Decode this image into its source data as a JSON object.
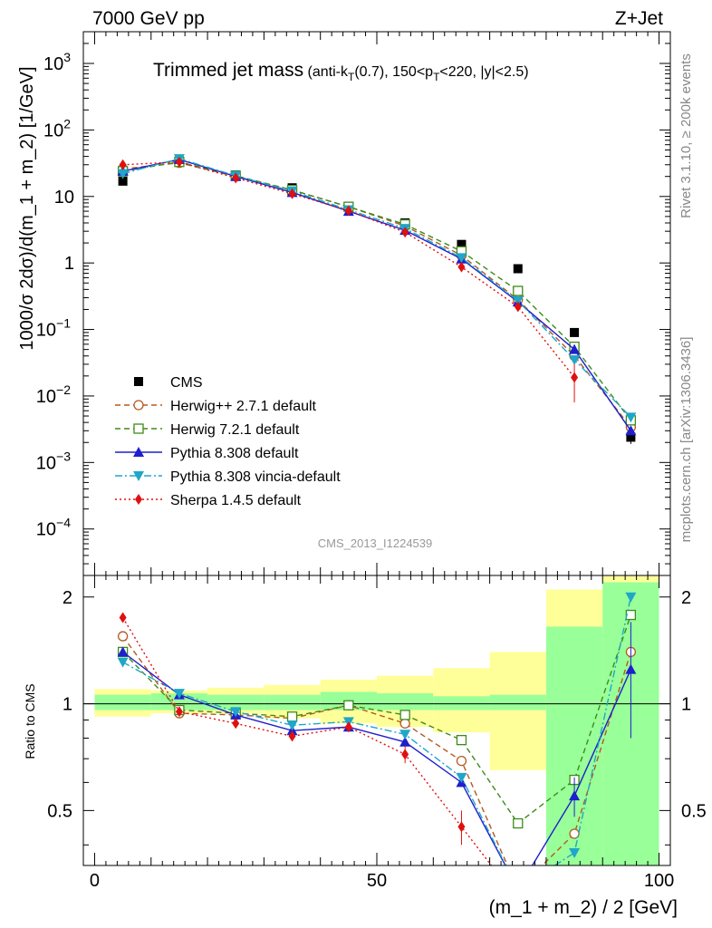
{
  "header": {
    "energy_label": "7000 GeV pp",
    "process_label": "Z+Jet"
  },
  "side_labels": {
    "rivet": "Rivet 3.1.10, ≥ 200k events",
    "mcplots": "mcplots.cern.ch [arXiv:1306.3436]"
  },
  "analysis_id": "CMS_2013_I1224539",
  "chart_data": [
    {
      "type": "line",
      "panel": "main",
      "title": "Trimmed jet mass",
      "subtitle": "(anti-k_T(0.7), 150<p_T<220, |y|<2.5)",
      "ylabel": "1000/σ 2dσ)/d(m_1 + m_2) [1/GeV]",
      "xlabel": "(m_1 + m_2) / 2 [GeV]",
      "xlim": [
        -2,
        102
      ],
      "ylim": [
        2e-05,
        3000
      ],
      "yscale": "log",
      "grid": false,
      "legend_position": "bottom-left",
      "x": [
        5,
        15,
        25,
        35,
        45,
        55,
        65,
        75,
        85,
        95
      ],
      "yticks": [
        {
          "value": 0.0001,
          "base": "10",
          "exp": "−4"
        },
        {
          "value": 0.001,
          "base": "10",
          "exp": "−3"
        },
        {
          "value": 0.01,
          "base": "10",
          "exp": "−2"
        },
        {
          "value": 0.1,
          "base": "10",
          "exp": "−1"
        },
        {
          "value": 1,
          "base": "1",
          "exp": ""
        },
        {
          "value": 10,
          "base": "10",
          "exp": ""
        },
        {
          "value": 100,
          "base": "10",
          "exp": "2"
        },
        {
          "value": 1000,
          "base": "10",
          "exp": "3"
        }
      ],
      "series": [
        {
          "name": "CMS",
          "color": "#000000",
          "marker": "square-filled",
          "line": "none",
          "values": [
            17,
            34,
            21,
            13.5,
            7,
            4,
            1.9,
            0.82,
            0.09,
            0.0024
          ],
          "errors": [
            1,
            2,
            1,
            0.7,
            0.4,
            0.25,
            0.12,
            0.06,
            0.01,
            0.0005
          ]
        },
        {
          "name": "Herwig++ 2.7.1 default",
          "color": "#b35a1f",
          "marker": "circle-open",
          "line": "dashed",
          "values": [
            26,
            32,
            20,
            12.5,
            7,
            3.6,
            1.3,
            0.28,
            0.04,
            0.0034
          ]
        },
        {
          "name": "Herwig 7.2.1 default",
          "color": "#3d8b1a",
          "marker": "square-open",
          "line": "dashed",
          "values": [
            24,
            33,
            20.5,
            12.5,
            7,
            3.8,
            1.5,
            0.38,
            0.055,
            0.0043
          ]
        },
        {
          "name": "Pythia 8.308 default",
          "color": "#1f1fcc",
          "marker": "triangle-up-filled",
          "line": "solid",
          "values": [
            24,
            36,
            20,
            11.5,
            6,
            3.1,
            1.15,
            0.26,
            0.05,
            0.003
          ]
        },
        {
          "name": "Pythia 8.308 vincia-default",
          "color": "#1fa6c9",
          "marker": "triangle-down-filled",
          "line": "dashdot",
          "values": [
            22,
            37,
            20.5,
            12,
            6.3,
            3.3,
            1.2,
            0.27,
            0.035,
            0.0048
          ]
        },
        {
          "name": "Sherpa 1.4.5 default",
          "color": "#e01010",
          "marker": "diamond-filled",
          "line": "dotted",
          "values": [
            30,
            33,
            19,
            11,
            6.1,
            2.9,
            0.87,
            0.22,
            0.019,
            null
          ],
          "errors": [
            null,
            null,
            null,
            null,
            null,
            null,
            null,
            null,
            0.011,
            null
          ]
        }
      ]
    },
    {
      "type": "line",
      "panel": "ratio",
      "ylabel": "Ratio to CMS",
      "xlabel": "(m_1 + m_2) / 2 [GeV]",
      "xlim": [
        -2,
        102
      ],
      "ylim": [
        0.35,
        2.3
      ],
      "yticks": [
        0.5,
        1,
        2
      ],
      "xticks": [
        0,
        50,
        100
      ],
      "reference_line": 1,
      "x": [
        5,
        15,
        25,
        35,
        45,
        55,
        65,
        75,
        85,
        95
      ],
      "band_colors": {
        "stat": "#99ff99",
        "total": "#ffff99"
      },
      "uncertainty_bands": [
        {
          "x0": 0,
          "x1": 10,
          "inner": [
            0.96,
            1.06
          ],
          "outer": [
            0.92,
            1.1
          ]
        },
        {
          "x0": 10,
          "x1": 20,
          "inner": [
            0.96,
            1.07
          ],
          "outer": [
            0.94,
            1.09
          ]
        },
        {
          "x0": 20,
          "x1": 30,
          "inner": [
            0.96,
            1.06
          ],
          "outer": [
            0.94,
            1.11
          ]
        },
        {
          "x0": 30,
          "x1": 40,
          "inner": [
            0.96,
            1.06
          ],
          "outer": [
            0.91,
            1.13
          ]
        },
        {
          "x0": 40,
          "x1": 50,
          "inner": [
            0.96,
            1.08
          ],
          "outer": [
            0.88,
            1.17
          ]
        },
        {
          "x0": 50,
          "x1": 60,
          "inner": [
            0.96,
            1.07
          ],
          "outer": [
            0.86,
            1.2
          ]
        },
        {
          "x0": 60,
          "x1": 70,
          "inner": [
            0.96,
            1.05
          ],
          "outer": [
            0.83,
            1.26
          ]
        },
        {
          "x0": 70,
          "x1": 80,
          "inner": [
            0.96,
            1.06
          ],
          "outer": [
            0.65,
            1.4
          ]
        },
        {
          "x0": 80,
          "x1": 90,
          "inner": [
            0.35,
            1.65
          ],
          "outer": [
            0.35,
            2.1
          ]
        },
        {
          "x0": 90,
          "x1": 100,
          "inner": [
            0.35,
            2.2
          ],
          "outer": [
            0.35,
            2.3
          ]
        }
      ],
      "series": [
        {
          "name": "Herwig++ 2.7.1 default",
          "color": "#b35a1f",
          "marker": "circle-open",
          "line": "dashed",
          "values": [
            1.55,
            0.94,
            0.93,
            0.91,
            0.99,
            0.88,
            0.69,
            0.3,
            0.43,
            1.4
          ]
        },
        {
          "name": "Herwig 7.2.1 default",
          "color": "#3d8b1a",
          "marker": "square-open",
          "line": "dashed",
          "values": [
            1.4,
            0.96,
            0.94,
            0.92,
            0.99,
            0.93,
            0.79,
            0.46,
            0.61,
            1.78
          ]
        },
        {
          "name": "Pythia 8.308 default",
          "color": "#1f1fcc",
          "marker": "triangle-up-filled",
          "line": "solid",
          "values": [
            1.4,
            1.06,
            0.93,
            0.84,
            0.86,
            0.78,
            0.6,
            0.3,
            0.55,
            1.25
          ],
          "errors": [
            null,
            null,
            null,
            null,
            null,
            null,
            null,
            null,
            0.07,
            0.45
          ]
        },
        {
          "name": "Pythia 8.308 vincia-default",
          "color": "#1fa6c9",
          "marker": "triangle-down-filled",
          "line": "dashdot",
          "values": [
            1.31,
            1.07,
            0.95,
            0.87,
            0.89,
            0.82,
            0.62,
            0.3,
            0.38,
            2.0
          ]
        },
        {
          "name": "Sherpa 1.4.5 default",
          "color": "#e01010",
          "marker": "diamond-filled",
          "line": "dotted",
          "values": [
            1.75,
            0.95,
            0.88,
            0.81,
            0.86,
            0.72,
            0.45,
            0.28,
            null,
            null
          ],
          "errors": [
            null,
            null,
            null,
            null,
            null,
            0.04,
            0.05,
            null,
            null,
            null
          ]
        }
      ]
    }
  ]
}
